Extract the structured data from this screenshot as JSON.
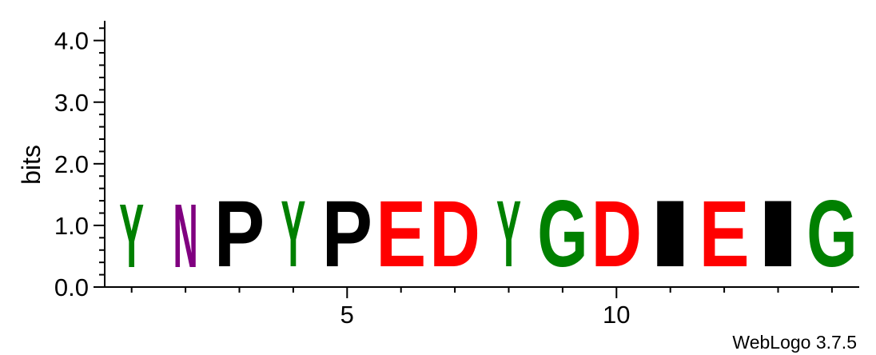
{
  "chart_data": {
    "type": "sequence-logo",
    "ylabel": "bits",
    "ylim": [
      0,
      4.32
    ],
    "y_ticks": [
      "0.0",
      "1.0",
      "2.0",
      "3.0",
      "4.0"
    ],
    "y_tick_values": [
      0,
      1,
      2,
      3,
      4
    ],
    "x_tick_labels": [
      "5",
      "10"
    ],
    "x_tick_values": [
      5,
      10
    ],
    "positions": [
      1,
      2,
      3,
      4,
      5,
      6,
      7,
      8,
      9,
      10,
      11,
      12,
      13,
      14
    ],
    "letters": [
      {
        "position": 1,
        "letter": "Y",
        "bits": 1.65,
        "color": "#008000"
      },
      {
        "position": 2,
        "letter": "N",
        "bits": 1.65,
        "color": "#800080"
      },
      {
        "position": 3,
        "letter": "P",
        "bits": 1.72,
        "color": "#000000"
      },
      {
        "position": 4,
        "letter": "Y",
        "bits": 1.72,
        "color": "#008000"
      },
      {
        "position": 5,
        "letter": "P",
        "bits": 1.72,
        "color": "#000000"
      },
      {
        "position": 6,
        "letter": "E",
        "bits": 1.72,
        "color": "#ff0000"
      },
      {
        "position": 7,
        "letter": "D",
        "bits": 1.72,
        "color": "#ff0000"
      },
      {
        "position": 8,
        "letter": "Y",
        "bits": 1.72,
        "color": "#008000"
      },
      {
        "position": 9,
        "letter": "G",
        "bits": 1.72,
        "color": "#008000"
      },
      {
        "position": 10,
        "letter": "D",
        "bits": 1.72,
        "color": "#ff0000"
      },
      {
        "position": 11,
        "letter": "I",
        "bits": 1.72,
        "color": "#000000"
      },
      {
        "position": 12,
        "letter": "E",
        "bits": 1.72,
        "color": "#ff0000"
      },
      {
        "position": 13,
        "letter": "I",
        "bits": 1.72,
        "color": "#000000"
      },
      {
        "position": 14,
        "letter": "G",
        "bits": 1.72,
        "color": "#008000"
      }
    ],
    "credit": "WebLogo 3.7.5"
  }
}
